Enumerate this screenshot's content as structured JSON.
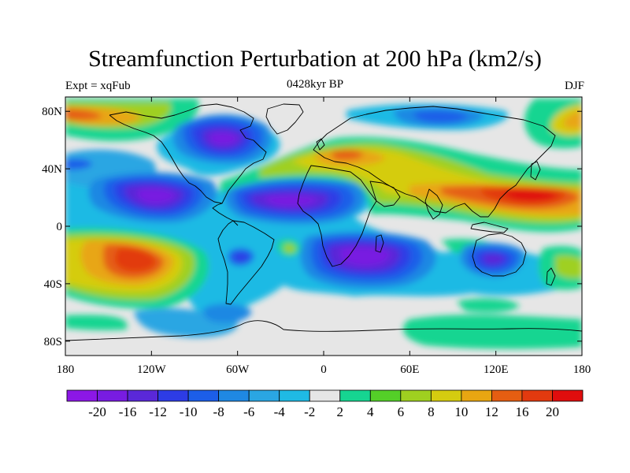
{
  "title": "Streamfunction Perturbation at 200 hPa (km2/s)",
  "subtitle_left": "Expt = xqFub",
  "subtitle_center": "0428kyr BP",
  "subtitle_right": "DJF",
  "x_ticks": [
    "180",
    "120W",
    "60W",
    "0",
    "60E",
    "120E",
    "180"
  ],
  "y_ticks": [
    "80N",
    "40N",
    "0",
    "40S",
    "80S"
  ],
  "colorbar": {
    "labels": [
      "-20",
      "-16",
      "-12",
      "-10",
      "-8",
      "-6",
      "-4",
      "-2",
      "2",
      "4",
      "6",
      "8",
      "10",
      "12",
      "16",
      "20"
    ],
    "colors": [
      "#8c17e6",
      "#781ce1",
      "#5a28d8",
      "#2d3ce5",
      "#1c5ee8",
      "#1f88e3",
      "#2aa6e3",
      "#1fbae4",
      "#e6e6e6",
      "#16d591",
      "#54cf28",
      "#9fd020",
      "#d5cc10",
      "#e8a612",
      "#e55e12",
      "#e23a0f",
      "#e00d0d"
    ]
  },
  "chart_data": {
    "type": "map",
    "field": "200 hPa streamfunction perturbation",
    "units": "km2/s",
    "experiment": "xqFub",
    "period": "0428kyr BP",
    "season": "DJF",
    "lon_range": [
      -180,
      180
    ],
    "lat_range": [
      -90,
      90
    ],
    "contour_levels": [
      -20,
      -16,
      -12,
      -10,
      -8,
      -6,
      -4,
      -2,
      2,
      4,
      6,
      8,
      10,
      12,
      16,
      20
    ],
    "features": [
      {
        "lon": -150,
        "lat": -25,
        "value": 14
      },
      {
        "lon": 148,
        "lat": 20,
        "value": 16
      },
      {
        "lon": -125,
        "lat": 20,
        "value": -16
      },
      {
        "lon": -10,
        "lat": 18,
        "value": -16
      },
      {
        "lon": 20,
        "lat": -27,
        "value": -14
      },
      {
        "lon": -75,
        "lat": 60,
        "value": -14
      },
      {
        "lon": 125,
        "lat": -28,
        "value": -12
      },
      {
        "lon": -160,
        "lat": 72,
        "value": 8
      },
      {
        "lon": 175,
        "lat": 75,
        "value": 10
      },
      {
        "lon": 15,
        "lat": 50,
        "value": 10
      },
      {
        "lon": 100,
        "lat": 78,
        "value": -8
      }
    ]
  }
}
